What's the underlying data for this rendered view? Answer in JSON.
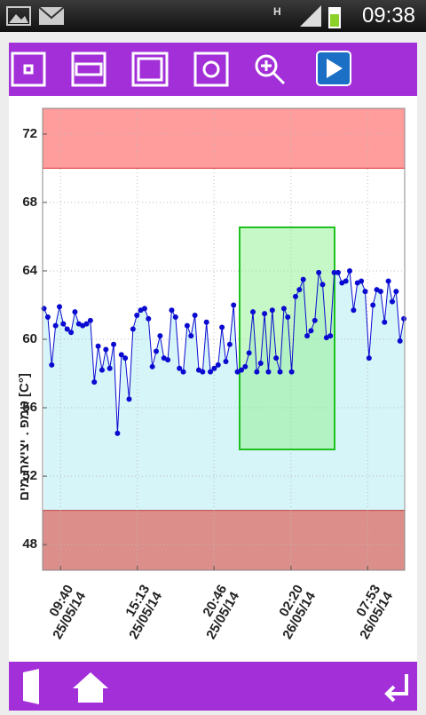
{
  "status_bar": {
    "time": "09:38"
  },
  "chart_data": {
    "type": "line",
    "y_label": "טמפ . יציאת מים [C°]",
    "ylim": [
      46.5,
      73.5
    ],
    "yticks": [
      48,
      52,
      56,
      60,
      64,
      68,
      72
    ],
    "xlim": [
      -1.3,
      24.9
    ],
    "xticks": [
      {
        "value": 0,
        "label": "09:40\n25/05/14"
      },
      {
        "value": 5.55,
        "label": "15:13\n25/05/14"
      },
      {
        "value": 11.1,
        "label": "20:46\n25/05/14"
      },
      {
        "value": 16.67,
        "label": "02:20\n26/05/14"
      },
      {
        "value": 22.22,
        "label": "07:53\n26/05/14"
      }
    ],
    "grid": true,
    "upper_limit": 70,
    "upper_color": "#ff9c9c",
    "lower_limit": 50,
    "lower_color": "#dc8f8a",
    "area_color": "#d6f5f8",
    "x": [
      -1.2,
      -0.92,
      -0.64,
      -0.36,
      -0.08,
      0.2,
      0.48,
      0.76,
      1.04,
      1.32,
      1.6,
      1.88,
      2.16,
      2.44,
      2.72,
      3.0,
      3.28,
      3.56,
      3.84,
      4.12,
      4.4,
      4.68,
      4.96,
      5.24,
      5.52,
      5.8,
      6.08,
      6.36,
      6.64,
      6.92,
      7.2,
      7.48,
      7.76,
      8.04,
      8.32,
      8.6,
      8.88,
      9.16,
      9.44,
      9.72,
      10.0,
      10.28,
      10.56,
      10.84,
      11.12,
      11.4,
      11.68,
      11.96,
      12.24,
      12.52,
      12.8,
      13.08,
      13.36,
      13.64,
      13.92,
      14.2,
      14.48,
      14.76,
      15.04,
      15.32,
      15.6,
      15.88,
      16.16,
      16.44,
      16.72,
      17.0,
      17.28,
      17.56,
      17.84,
      18.12,
      18.4,
      18.68,
      18.96,
      19.24,
      19.52,
      19.8,
      20.08,
      20.36,
      20.64,
      20.92,
      21.2,
      21.48,
      21.76,
      22.04,
      22.32,
      22.6,
      22.88,
      23.16,
      23.44,
      23.72,
      24.0,
      24.28,
      24.56,
      24.84
    ],
    "series": [
      {
        "color": "#0a0ad0",
        "values": [
          61.8,
          61.3,
          58.5,
          60.8,
          61.9,
          60.9,
          60.6,
          60.4,
          61.6,
          60.9,
          60.8,
          60.9,
          61.1,
          57.5,
          59.6,
          58.2,
          59.4,
          58.3,
          59.7,
          54.5,
          59.1,
          58.9,
          56.5,
          60.6,
          61.4,
          61.7,
          61.8,
          61.2,
          58.4,
          59.3,
          60.2,
          58.9,
          58.8,
          61.7,
          61.3,
          58.3,
          58.1,
          60.8,
          60.2,
          61.4,
          58.2,
          58.1,
          61.0,
          58.1,
          58.3,
          58.5,
          60.7,
          58.7,
          59.7,
          62.0,
          58.1,
          58.2,
          58.4,
          59.2,
          61.6,
          58.1,
          58.6,
          61.5,
          58.1,
          61.7,
          58.9,
          58.1,
          61.8,
          61.3,
          58.1,
          62.5,
          62.9,
          63.5,
          60.2,
          60.5,
          61.1,
          63.9,
          63.2,
          60.1,
          60.2,
          63.9,
          63.9,
          63.3,
          63.4,
          64.0,
          61.7,
          63.3,
          63.4,
          62.8,
          58.9,
          62.0,
          62.9,
          62.8,
          61.0,
          63.4,
          62.2,
          62.8,
          59.9,
          61.2
        ]
      }
    ]
  }
}
